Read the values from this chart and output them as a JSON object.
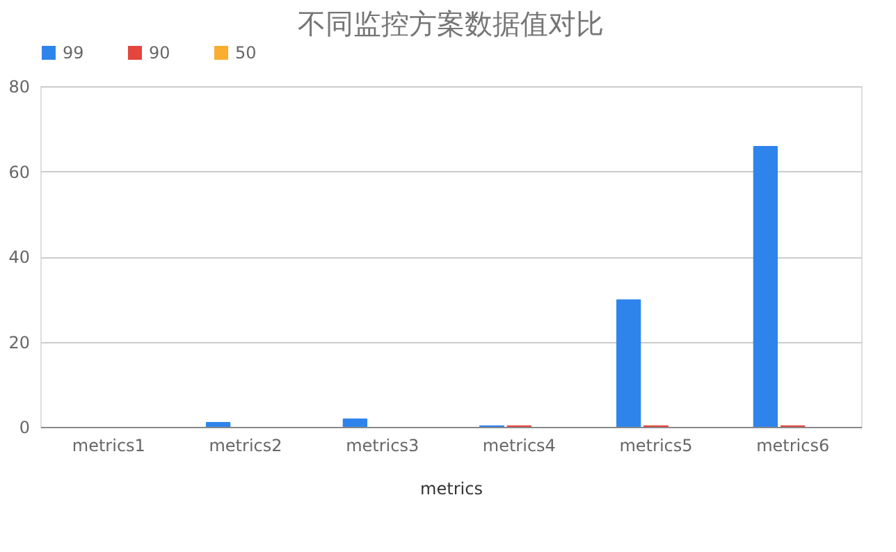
{
  "chart_data": {
    "type": "bar",
    "title": "不同监控方案数据值对比",
    "xlabel": "metrics",
    "categories": [
      "metrics1",
      "metrics2",
      "metrics3",
      "metrics4",
      "metrics5",
      "metrics6"
    ],
    "series": [
      {
        "name": "99",
        "color": "#2f84ec",
        "values": [
          0,
          1.2,
          2,
          0.4,
          30,
          66
        ]
      },
      {
        "name": "90",
        "color": "#e4463e",
        "values": [
          0,
          0,
          0,
          0.4,
          0.4,
          0.4
        ]
      },
      {
        "name": "50",
        "color": "#fbad30",
        "values": [
          0,
          0,
          0,
          0,
          0,
          0
        ]
      }
    ],
    "ylim": [
      0,
      80
    ],
    "yticks": [
      0,
      20,
      40,
      60,
      80
    ],
    "grid": "y",
    "legend": "top"
  }
}
